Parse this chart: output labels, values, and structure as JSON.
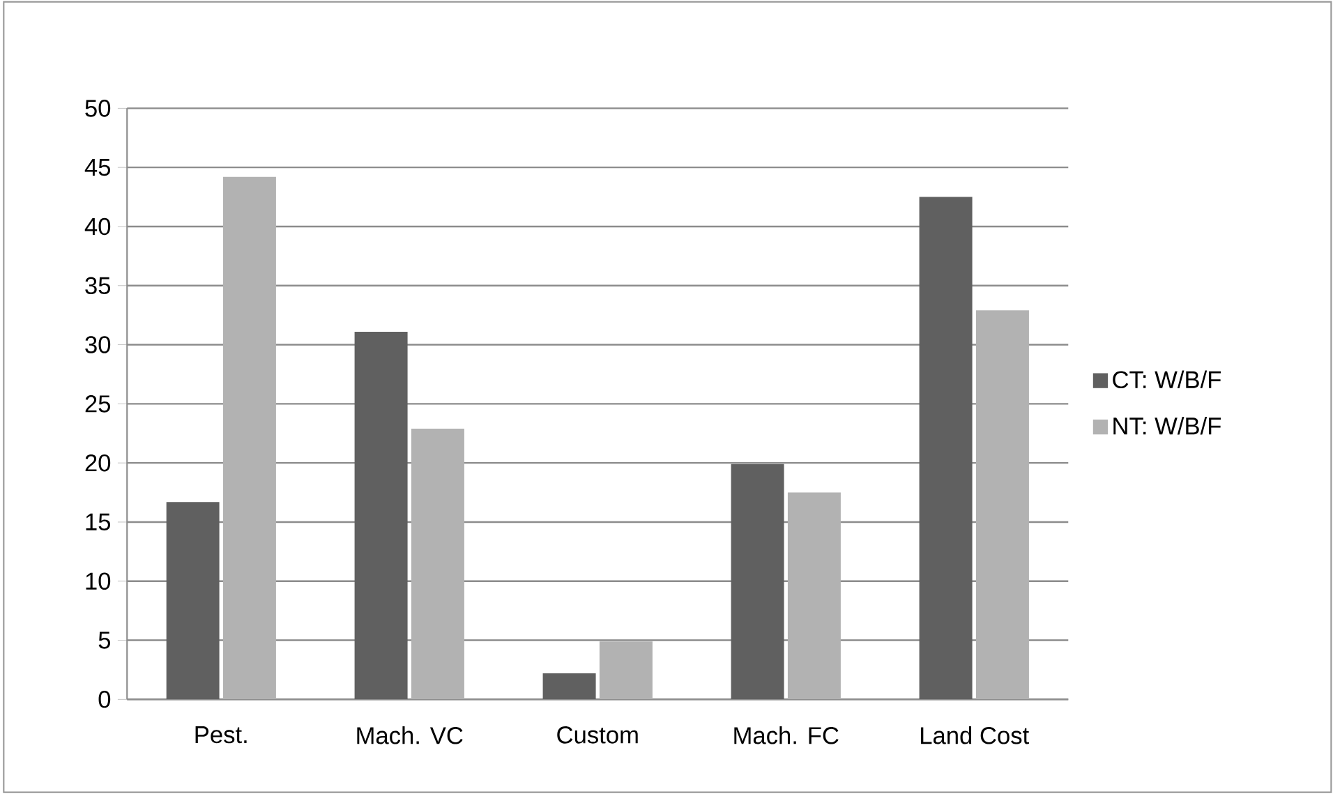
{
  "chart_data": {
    "type": "bar",
    "categories": [
      "Pest.",
      "Mach. VC",
      "Custom",
      "Mach. FC",
      "Land Cost"
    ],
    "series": [
      {
        "name": "CT: W/B/F",
        "color": "#606060",
        "values": [
          16.7,
          31.1,
          2.2,
          19.9,
          42.5
        ]
      },
      {
        "name": "NT: W/B/F",
        "color": "#b2b2b2",
        "values": [
          44.2,
          22.9,
          4.9,
          17.5,
          32.9
        ]
      }
    ],
    "ylim": [
      0,
      50
    ],
    "yticks": [
      0,
      5,
      10,
      15,
      20,
      25,
      30,
      35,
      40,
      45,
      50
    ],
    "grid": "y",
    "legend": "right"
  }
}
